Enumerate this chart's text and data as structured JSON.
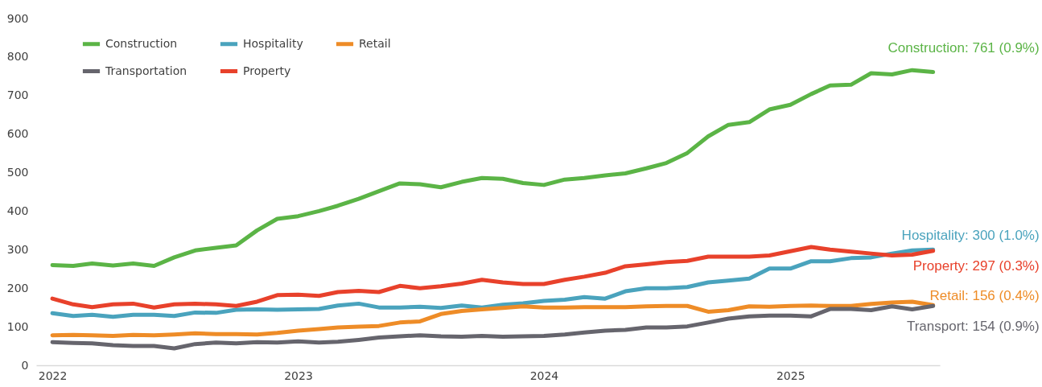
{
  "chart_data": {
    "type": "line",
    "x": [
      "2022-01",
      "2022-02",
      "2022-03",
      "2022-04",
      "2022-05",
      "2022-06",
      "2022-07",
      "2022-08",
      "2022-09",
      "2022-10",
      "2022-11",
      "2022-12",
      "2023-01",
      "2023-02",
      "2023-03",
      "2023-04",
      "2023-05",
      "2023-06",
      "2023-07",
      "2023-08",
      "2023-09",
      "2023-10",
      "2023-11",
      "2023-12",
      "2024-01",
      "2024-02",
      "2024-03",
      "2024-04",
      "2024-05",
      "2024-06",
      "2024-07",
      "2024-08",
      "2024-09",
      "2024-10",
      "2024-11",
      "2024-12",
      "2025-01",
      "2025-02",
      "2025-03",
      "2025-04",
      "2025-05",
      "2025-06",
      "2025-07",
      "2025-08"
    ],
    "series": [
      {
        "name": "Construction",
        "color": "#5bb446",
        "values": [
          260,
          258,
          264,
          259,
          264,
          258,
          280,
          298,
          305,
          311,
          350,
          380,
          387,
          400,
          414,
          432,
          452,
          472,
          470,
          462,
          476,
          486,
          484,
          473,
          468,
          482,
          486,
          493,
          498,
          511,
          525,
          551,
          594,
          624,
          631,
          664,
          676,
          704,
          726,
          728,
          758,
          755,
          766,
          761
        ]
      },
      {
        "name": "Hospitality",
        "color": "#4aa3bd",
        "values": [
          135,
          128,
          131,
          126,
          131,
          131,
          128,
          137,
          136,
          144,
          145,
          144,
          145,
          146,
          155,
          160,
          150,
          150,
          152,
          149,
          155,
          150,
          157,
          161,
          167,
          170,
          177,
          173,
          192,
          200,
          200,
          203,
          215,
          220,
          225,
          251,
          251,
          270,
          270,
          278,
          280,
          290,
          298,
          300
        ]
      },
      {
        "name": "Retail",
        "color": "#ee8c27",
        "values": [
          78,
          79,
          78,
          76,
          79,
          78,
          80,
          83,
          81,
          81,
          80,
          84,
          90,
          94,
          98,
          100,
          102,
          111,
          114,
          133,
          141,
          145,
          149,
          153,
          150,
          150,
          151,
          151,
          151,
          153,
          154,
          154,
          139,
          143,
          153,
          152,
          154,
          155,
          154,
          154,
          159,
          163,
          165,
          156
        ]
      },
      {
        "name": "Transportation",
        "color": "#66656d",
        "values": [
          60,
          58,
          57,
          52,
          50,
          50,
          44,
          55,
          59,
          57,
          60,
          59,
          62,
          59,
          61,
          66,
          72,
          75,
          78,
          75,
          74,
          76,
          74,
          75,
          76,
          80,
          85,
          90,
          92,
          98,
          98,
          101,
          111,
          121,
          127,
          129,
          129,
          127,
          146,
          146,
          143,
          153,
          145,
          154
        ]
      },
      {
        "name": "Property",
        "color": "#e8412b",
        "values": [
          173,
          158,
          151,
          158,
          160,
          150,
          158,
          160,
          158,
          154,
          165,
          182,
          183,
          180,
          190,
          193,
          190,
          206,
          200,
          205,
          212,
          222,
          215,
          211,
          211,
          222,
          230,
          240,
          257,
          262,
          268,
          271,
          282,
          282,
          282,
          285,
          296,
          307,
          300,
          295,
          290,
          285,
          287,
          297
        ]
      }
    ],
    "annotations": [
      {
        "text": "Construction: 761 (0.9%)",
        "x": "2025-08",
        "y": 761
      },
      {
        "text": "Hospitality: 300 (1.0%)",
        "x": "2025-08",
        "y": 300
      },
      {
        "text": "Retail: 156 (0.4%)",
        "x": "2025-08",
        "y": 156
      },
      {
        "text": "Transport: 154 (0.9%)",
        "x": "2025-08",
        "y": 154
      },
      {
        "text": "Property: 297 (0.3%)",
        "x": "2025-08",
        "y": 297
      }
    ],
    "xlim": [
      "2021-12-08",
      "2025-08-11"
    ],
    "xticks": [
      "2022",
      "2023",
      "2024",
      "2025"
    ],
    "ylim": [
      0,
      900
    ],
    "yticks": [
      0,
      100,
      200,
      300,
      400,
      500,
      600,
      700,
      800,
      900
    ],
    "grid": false,
    "legend": "top left",
    "line_style": "solid",
    "marker": "none"
  }
}
